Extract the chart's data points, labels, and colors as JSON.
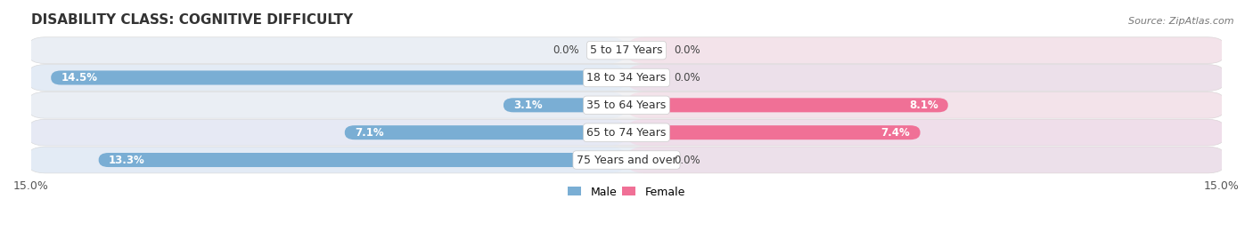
{
  "title": "DISABILITY CLASS: COGNITIVE DIFFICULTY",
  "source": "Source: ZipAtlas.com",
  "categories": [
    "5 to 17 Years",
    "18 to 34 Years",
    "35 to 64 Years",
    "65 to 74 Years",
    "75 Years and over"
  ],
  "male_values": [
    0.0,
    14.5,
    3.1,
    7.1,
    13.3
  ],
  "female_values": [
    0.0,
    0.0,
    8.1,
    7.4,
    0.0
  ],
  "max_val": 15.0,
  "male_bar_color": "#7aaed4",
  "female_bar_color": "#f07096",
  "male_bg_color": "#dce8f5",
  "female_bg_color": "#f5c8d8",
  "row_bg_odd": "#f0f0f2",
  "row_bg_even": "#e4ecf4",
  "label_color": "#444444",
  "title_color": "#333333",
  "title_fontsize": 11,
  "cat_fontsize": 9,
  "val_fontsize": 8.5,
  "legend_fontsize": 9,
  "axis_fontsize": 9
}
